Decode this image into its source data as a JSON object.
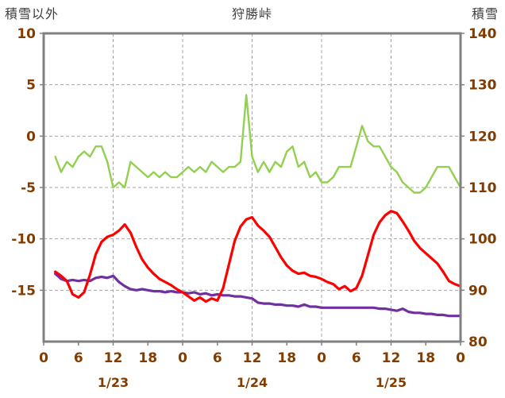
{
  "header": {
    "left_axis_title": "積雪以外",
    "chart_title": "狩勝峠",
    "right_axis_title": "積雪"
  },
  "chart_data": {
    "type": "line",
    "title": "狩勝峠",
    "colors": {
      "border": "#808080",
      "grid": "#a6a6a6",
      "tick_label": "#833C00",
      "title": "#3f3f3f"
    },
    "grid": {
      "dash": "4 3",
      "vertical_interval_hours": 12
    },
    "axes": {
      "left": {
        "title": "積雪以外",
        "min": -20,
        "max": 10,
        "tick_labels": [
          "10",
          "5",
          "0",
          "-5",
          "-10",
          "-15"
        ],
        "tick_values": [
          10,
          5,
          0,
          -5,
          -10,
          -15
        ]
      },
      "right": {
        "title": "積雪",
        "min": 80,
        "max": 140,
        "tick_labels": [
          "140",
          "130",
          "120",
          "110",
          "100",
          "90",
          "80"
        ],
        "tick_values": [
          140,
          130,
          120,
          110,
          100,
          90,
          80
        ]
      },
      "x": {
        "min": 0,
        "max": 72,
        "tick_interval_hours": 6,
        "tick_labels": [
          "0",
          "6",
          "12",
          "18",
          "0",
          "6",
          "12",
          "18",
          "0",
          "6",
          "12",
          "18",
          "0"
        ],
        "day_labels": [
          "1/23",
          "1/24",
          "1/25"
        ]
      }
    },
    "x_hours_start": 2,
    "x_hours_step": 1,
    "series": [
      {
        "id": "green_line",
        "axis": "right",
        "color": "#92d050",
        "width": 2.4,
        "values": [
          116,
          113,
          115,
          114,
          116,
          117,
          116,
          118,
          118,
          115,
          110,
          111,
          110,
          115,
          114,
          113,
          112,
          113,
          112,
          113,
          112,
          112,
          113,
          114,
          113,
          114,
          113,
          115,
          114,
          113,
          114,
          114,
          115,
          128,
          116,
          113,
          115,
          113,
          115,
          114,
          117,
          118,
          114,
          115,
          112,
          113,
          111,
          111,
          112,
          114,
          114,
          114,
          118,
          122,
          119,
          118,
          118,
          116,
          114,
          113,
          111,
          110,
          109,
          109,
          110,
          112,
          114,
          114,
          114,
          112,
          110
        ]
      },
      {
        "id": "purple_line",
        "axis": "left",
        "color": "#7030a0",
        "width": 3.2,
        "values": [
          -13.4,
          -13.9,
          -14.1,
          -14,
          -14.1,
          -14,
          -14.1,
          -13.8,
          -13.7,
          -13.8,
          -13.6,
          -14.2,
          -14.6,
          -14.9,
          -15,
          -14.9,
          -15,
          -15.1,
          -15.1,
          -15.2,
          -15.1,
          -15.2,
          -15.2,
          -15.3,
          -15.2,
          -15.4,
          -15.3,
          -15.5,
          -15.4,
          -15.5,
          -15.5,
          -15.6,
          -15.6,
          -15.7,
          -15.8,
          -16.2,
          -16.3,
          -16.3,
          -16.4,
          -16.4,
          -16.5,
          -16.5,
          -16.6,
          -16.4,
          -16.6,
          -16.6,
          -16.7,
          -16.7,
          -16.7,
          -16.7,
          -16.7,
          -16.7,
          -16.7,
          -16.7,
          -16.7,
          -16.7,
          -16.8,
          -16.8,
          -16.9,
          -17,
          -16.8,
          -17.1,
          -17.2,
          -17.2,
          -17.3,
          -17.3,
          -17.4,
          -17.4,
          -17.5,
          -17.5,
          -17.5
        ]
      },
      {
        "id": "red_line",
        "axis": "left",
        "color": "#ff0000",
        "width": 3.2,
        "values": [
          -13.2,
          -13.6,
          -14.1,
          -15.4,
          -15.7,
          -15.2,
          -13.5,
          -11.5,
          -10.3,
          -9.8,
          -9.6,
          -9.2,
          -8.6,
          -9.4,
          -10.8,
          -12,
          -12.8,
          -13.4,
          -13.9,
          -14.2,
          -14.5,
          -14.9,
          -15.2,
          -15.6,
          -16,
          -15.7,
          -16.1,
          -15.8,
          -16,
          -14.8,
          -12.5,
          -10.2,
          -8.8,
          -8.1,
          -7.9,
          -8.7,
          -9.2,
          -9.8,
          -10.8,
          -11.8,
          -12.6,
          -13.1,
          -13.4,
          -13.3,
          -13.6,
          -13.7,
          -13.9,
          -14.2,
          -14.4,
          -14.9,
          -14.6,
          -15.1,
          -14.8,
          -13.6,
          -11.6,
          -9.6,
          -8.4,
          -7.7,
          -7.3,
          -7.5,
          -8.3,
          -9.2,
          -10.2,
          -10.9,
          -11.4,
          -11.9,
          -12.4,
          -13.2,
          -14.1,
          -14.4,
          -14.6
        ]
      }
    ]
  }
}
